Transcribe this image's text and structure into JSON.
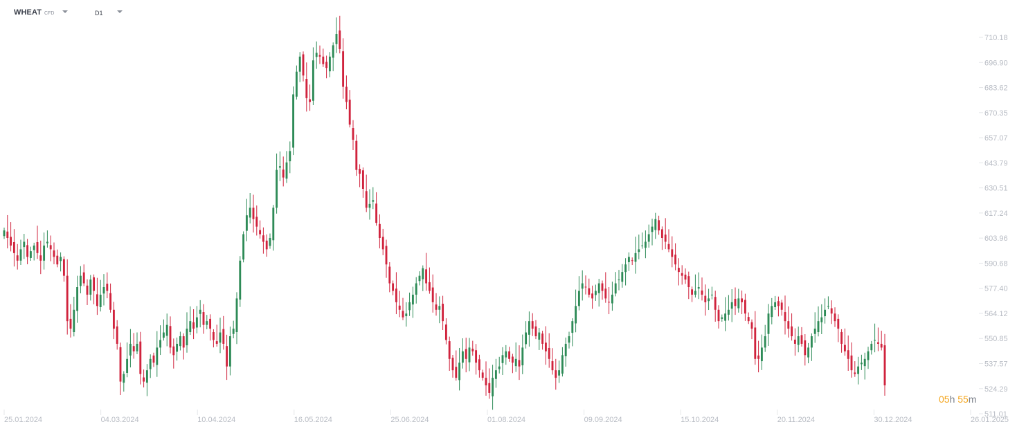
{
  "header": {
    "symbol": "WHEAT",
    "symbol_sub": "CFD",
    "timeframe": "D1"
  },
  "timer": {
    "hours": "05",
    "h": "h",
    "minutes": "55",
    "m": "m"
  },
  "colors": {
    "up": "#2e8b57",
    "down": "#d0233d",
    "axis_text": "#b8bcc4",
    "tick": "#e5e7ea"
  },
  "chart_data": {
    "type": "candlestick",
    "title": "",
    "xlabel": "",
    "ylabel": "",
    "ylim": [
      511.01,
      718
    ],
    "y_ticks": [
      "710.18",
      "696.90",
      "683.62",
      "670.35",
      "657.07",
      "643.79",
      "630.51",
      "617.24",
      "603.96",
      "590.68",
      "577.40",
      "564.12",
      "550.85",
      "537.57",
      "524.29",
      "511.01"
    ],
    "x_ticks": [
      "25.01.2024",
      "04.03.2024",
      "10.04.2024",
      "16.05.2024",
      "25.06.2024",
      "01.08.2024",
      "09.09.2024",
      "15.10.2024",
      "20.11.2024",
      "30.12.2024",
      "26.01.2025"
    ],
    "candles_close": [
      608,
      604,
      600,
      596,
      592,
      598,
      602,
      594,
      597,
      600,
      596,
      592,
      600,
      602,
      598,
      594,
      590,
      594,
      584,
      560,
      556,
      566,
      578,
      584,
      580,
      574,
      582,
      576,
      568,
      574,
      578,
      576,
      566,
      556,
      548,
      528,
      532,
      540,
      548,
      544,
      548,
      532,
      528,
      534,
      540,
      538,
      546,
      550,
      554,
      558,
      546,
      542,
      548,
      552,
      546,
      556,
      560,
      556,
      562,
      566,
      558,
      560,
      556,
      550,
      548,
      554,
      548,
      536,
      552,
      556,
      572,
      592,
      606,
      616,
      620,
      614,
      610,
      606,
      602,
      598,
      604,
      620,
      640,
      642,
      636,
      644,
      650,
      680,
      692,
      700,
      690,
      678,
      676,
      698,
      702,
      700,
      696,
      694,
      700,
      706,
      712,
      704,
      684,
      676,
      664,
      656,
      640,
      638,
      630,
      620,
      622,
      624,
      612,
      604,
      598,
      590,
      580,
      576,
      570,
      566,
      562,
      564,
      570,
      574,
      580,
      584,
      588,
      580,
      576,
      570,
      566,
      568,
      560,
      550,
      540,
      534,
      530,
      538,
      544,
      540,
      546,
      544,
      538,
      534,
      530,
      526,
      522,
      530,
      534,
      536,
      542,
      544,
      540,
      538,
      540,
      536,
      546,
      554,
      560,
      556,
      552,
      554,
      548,
      544,
      540,
      534,
      530,
      534,
      542,
      548,
      552,
      560,
      568,
      576,
      580,
      578,
      574,
      572,
      576,
      580,
      576,
      572,
      570,
      574,
      580,
      582,
      586,
      590,
      594,
      592,
      596,
      598,
      600,
      602,
      606,
      610,
      614,
      608,
      604,
      602,
      598,
      594,
      590,
      586,
      584,
      582,
      578,
      574,
      576,
      578,
      574,
      570,
      572,
      574,
      566,
      560,
      562,
      564,
      566,
      570,
      568,
      572,
      570,
      564,
      560,
      556,
      540,
      540,
      546,
      552,
      564,
      568,
      570,
      568,
      566,
      560,
      556,
      552,
      548,
      552,
      548,
      542,
      546,
      552,
      556,
      560,
      562,
      566,
      568,
      564,
      560,
      556,
      548,
      544,
      540,
      534,
      532,
      536,
      538,
      540,
      544,
      548,
      550,
      548,
      546,
      526
    ]
  }
}
